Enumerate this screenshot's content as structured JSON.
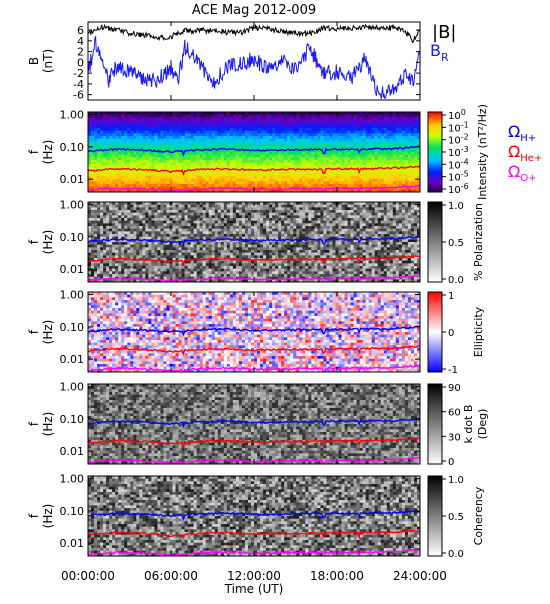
{
  "title": "ACE Mag 2012-009",
  "x_axis": {
    "label": "Time (UT)",
    "ticks": [
      "00:00:00",
      "06:00:00",
      "12:00:00",
      "18:00:00",
      "24:00:00"
    ]
  },
  "colors": {
    "B_total": "#000000",
    "B_R": "#1a1aff",
    "H_plus": "#0000ff",
    "He_plus": "#ff0000",
    "O_plus": "#ff00ff"
  },
  "panels": {
    "b": {
      "ylabel": "B",
      "yunit": "(nT)",
      "yticks": [
        "-6",
        "-4",
        "-2",
        "0",
        "2",
        "4",
        "6"
      ],
      "legend": {
        "total_label": "|B|",
        "radial_main": "B",
        "radial_sub": "R"
      }
    },
    "intensity": {
      "ylabel": "f",
      "yunit": "(Hz)",
      "yticks": [
        "1.00",
        "0.10",
        "0.01"
      ],
      "cbar_label": "Intensity (nT²/Hz)",
      "cbar_ticks": [
        {
          "base": "10",
          "exp": "0"
        },
        {
          "base": "10",
          "exp": "-1"
        },
        {
          "base": "10",
          "exp": "-2"
        },
        {
          "base": "10",
          "exp": "-3"
        },
        {
          "base": "10",
          "exp": "-4"
        },
        {
          "base": "10",
          "exp": "-5"
        },
        {
          "base": "10",
          "exp": "-6"
        }
      ],
      "legend": [
        {
          "main": "Ω",
          "sub": "H+"
        },
        {
          "main": "Ω",
          "sub": "He+"
        },
        {
          "main": "Ω",
          "sub": "O+"
        }
      ]
    },
    "polarization": {
      "ylabel": "f",
      "yunit": "(Hz)",
      "yticks": [
        "1.00",
        "0.10",
        "0.01"
      ],
      "cbar_label": "% Polarization",
      "cbar_ticks": [
        "1.0",
        "0.5",
        "0.0"
      ]
    },
    "ellipticity": {
      "ylabel": "f",
      "yunit": "(Hz)",
      "yticks": [
        "1.00",
        "0.10",
        "0.01"
      ],
      "cbar_label": "Ellipticity",
      "cbar_ticks": [
        "1",
        "0",
        "-1"
      ]
    },
    "kdotb": {
      "ylabel": "f",
      "yunit": "(Hz)",
      "yticks": [
        "1.00",
        "0.10",
        "0.01"
      ],
      "cbar_label_1": "k dot B",
      "cbar_label_2": "(Deg)",
      "cbar_ticks": [
        "90",
        "60",
        "30",
        "0"
      ]
    },
    "coherency": {
      "ylabel": "f",
      "yunit": "(Hz)",
      "yticks": [
        "1.00",
        "0.10",
        "0.01"
      ],
      "cbar_label": "Coherency",
      "cbar_ticks": [
        "1.0",
        "0.5",
        "0.0"
      ]
    }
  },
  "chart_data": {
    "type": "heatmap",
    "title": "ACE Mag 2012-009",
    "x_range_hours": [
      0,
      24
    ],
    "x_ticks": [
      "00:00:00",
      "06:00:00",
      "12:00:00",
      "18:00:00",
      "24:00:00"
    ],
    "xlabel": "Time (UT)",
    "b_field": {
      "ylabel": "B (nT)",
      "ylim": [
        -7,
        7.5
      ],
      "series": [
        {
          "name": "|B|",
          "x": [
            0,
            0.5,
            1,
            2,
            3,
            4,
            5,
            6,
            7,
            8,
            9,
            10,
            11,
            12,
            13,
            14,
            15,
            16,
            17,
            18,
            19,
            20,
            21,
            22,
            22.5,
            23,
            23.5,
            24
          ],
          "values": [
            5.0,
            6.2,
            6.5,
            6.1,
            5.4,
            5.1,
            4.6,
            4.8,
            5.9,
            5.9,
            6.0,
            5.6,
            5.5,
            6.4,
            6.2,
            5.8,
            5.3,
            5.4,
            6.4,
            6.3,
            6.4,
            6.6,
            6.5,
            6.4,
            6.2,
            5.6,
            3.9,
            6.5
          ]
        },
        {
          "name": "B_R",
          "x": [
            0,
            0.5,
            1,
            1.5,
            2,
            3,
            4,
            5,
            6,
            6.5,
            7,
            8,
            9,
            10,
            11,
            12,
            13,
            14,
            15,
            16,
            17,
            18,
            19,
            20,
            20.5,
            21,
            22,
            23,
            23.5,
            24
          ],
          "values": [
            -2.2,
            3.6,
            0.8,
            -3.5,
            -1.0,
            -2.0,
            -2.8,
            -3.4,
            -1.0,
            -3.6,
            2.8,
            0.4,
            -4.1,
            -0.9,
            -0.4,
            0.6,
            -1.5,
            0.3,
            -1.6,
            2.8,
            -2.0,
            -1.8,
            -3.0,
            0.5,
            -2.8,
            -6.0,
            -5.2,
            -2.5,
            -4.0,
            2.0
          ]
        }
      ]
    },
    "spectra": {
      "ylabel": "f (Hz)",
      "yscale": "log",
      "ylim": [
        0.004,
        1.2
      ],
      "panels": [
        "Intensity (nT²/Hz)",
        "% Polarization",
        "Ellipticity",
        "k dot B (Deg)",
        "Coherency"
      ],
      "colorbar_ranges": {
        "Intensity": [
          1e-06,
          1
        ],
        "% Polarization": [
          0,
          1
        ],
        "Ellipticity": [
          -1,
          1
        ],
        "k dot B": [
          0,
          90
        ],
        "Coherency": [
          0,
          1
        ]
      },
      "gyrofrequencies": {
        "x": [
          0,
          2,
          4,
          6,
          8,
          10,
          12,
          14,
          16,
          18,
          20,
          22,
          24
        ],
        "series": [
          {
            "name": "Ω H+",
            "values": [
              0.072,
              0.084,
              0.08,
              0.07,
              0.08,
              0.086,
              0.077,
              0.079,
              0.082,
              0.083,
              0.085,
              0.087,
              0.1
            ]
          },
          {
            "name": "Ω He+",
            "values": [
              0.018,
              0.021,
              0.02,
              0.017,
              0.02,
              0.021,
              0.019,
              0.02,
              0.02,
              0.021,
              0.021,
              0.022,
              0.025
            ]
          },
          {
            "name": "Ω O+",
            "values": [
              0.0045,
              0.0052,
              0.005,
              0.0044,
              0.005,
              0.0054,
              0.0048,
              0.0049,
              0.0051,
              0.0052,
              0.0053,
              0.0054,
              0.0062
            ]
          }
        ]
      }
    }
  }
}
